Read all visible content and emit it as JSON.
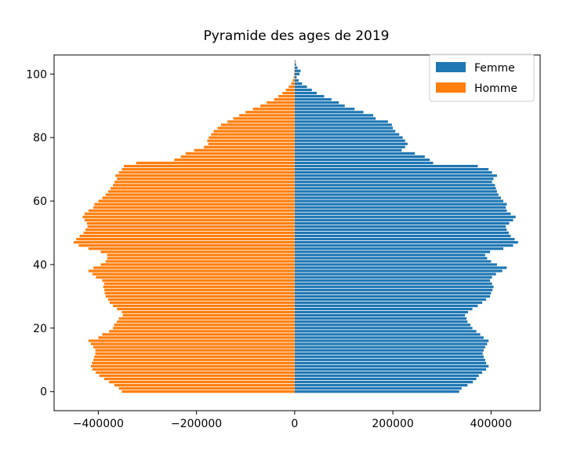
{
  "chart_data": {
    "type": "bar",
    "orientation": "horizontal",
    "title": "Pyramide des ages de 2019",
    "xlabel": "",
    "ylabel": "",
    "xlim": [
      -490000,
      500000
    ],
    "ylim": [
      -6,
      106
    ],
    "grid": false,
    "legend": "top-right",
    "x_ticks": [
      -400000,
      -200000,
      0,
      200000,
      400000
    ],
    "x_tick_labels": [
      "−400000",
      "−200000",
      "0",
      "200000",
      "400000"
    ],
    "y_ticks": [
      0,
      20,
      40,
      60,
      80,
      100
    ],
    "y_tick_labels": [
      "0",
      "20",
      "40",
      "60",
      "80",
      "100"
    ],
    "ages": [
      0,
      1,
      2,
      3,
      4,
      5,
      6,
      7,
      8,
      9,
      10,
      11,
      12,
      13,
      14,
      15,
      16,
      17,
      18,
      19,
      20,
      21,
      22,
      23,
      24,
      25,
      26,
      27,
      28,
      29,
      30,
      31,
      32,
      33,
      34,
      35,
      36,
      37,
      38,
      39,
      40,
      41,
      42,
      43,
      44,
      45,
      46,
      47,
      48,
      49,
      50,
      51,
      52,
      53,
      54,
      55,
      56,
      57,
      58,
      59,
      60,
      61,
      62,
      63,
      64,
      65,
      66,
      67,
      68,
      69,
      70,
      71,
      72,
      73,
      74,
      75,
      76,
      77,
      78,
      79,
      80,
      81,
      82,
      83,
      84,
      85,
      86,
      87,
      88,
      89,
      90,
      91,
      92,
      93,
      94,
      95,
      96,
      97,
      98,
      99,
      100,
      101,
      102,
      103,
      104
    ],
    "series": [
      {
        "name": "Femme",
        "color": "#1f77b4",
        "values": [
          335000,
          340000,
          352000,
          363000,
          370000,
          375000,
          382000,
          390000,
          395000,
          390000,
          388000,
          385000,
          383000,
          385000,
          388000,
          392000,
          395000,
          385000,
          378000,
          370000,
          362000,
          358000,
          352000,
          350000,
          347000,
          353000,
          362000,
          373000,
          382000,
          390000,
          398000,
          400000,
          403000,
          405000,
          402000,
          398000,
          402000,
          410000,
          423000,
          432000,
          412000,
          400000,
          392000,
          388000,
          398000,
          425000,
          445000,
          455000,
          448000,
          440000,
          436000,
          432000,
          430000,
          437000,
          445000,
          450000,
          440000,
          432000,
          430000,
          432000,
          425000,
          420000,
          415000,
          412000,
          410000,
          408000,
          402000,
          405000,
          412000,
          402000,
          395000,
          373000,
          282000,
          275000,
          265000,
          245000,
          218000,
          225000,
          230000,
          225000,
          220000,
          213000,
          205000,
          200000,
          198000,
          190000,
          165000,
          160000,
          140000,
          122000,
          102000,
          90000,
          75000,
          60000,
          45000,
          35000,
          25000,
          15000,
          8000,
          4000,
          10000,
          12000,
          6000,
          3000,
          1500
        ]
      },
      {
        "name": "Homme",
        "color": "#ff7f0e",
        "values": [
          -352000,
          -358000,
          -367000,
          -378000,
          -388000,
          -398000,
          -405000,
          -412000,
          -415000,
          -413000,
          -410000,
          -408000,
          -406000,
          -406000,
          -410000,
          -415000,
          -420000,
          -400000,
          -392000,
          -378000,
          -370000,
          -368000,
          -362000,
          -358000,
          -350000,
          -352000,
          -362000,
          -370000,
          -377000,
          -380000,
          -385000,
          -387000,
          -388000,
          -390000,
          -388000,
          -392000,
          -405000,
          -412000,
          -420000,
          -410000,
          -395000,
          -385000,
          -382000,
          -382000,
          -395000,
          -420000,
          -440000,
          -450000,
          -445000,
          -438000,
          -430000,
          -426000,
          -422000,
          -423000,
          -428000,
          -432000,
          -428000,
          -420000,
          -410000,
          -408000,
          -400000,
          -392000,
          -385000,
          -380000,
          -375000,
          -370000,
          -367000,
          -362000,
          -365000,
          -358000,
          -352000,
          -348000,
          -323000,
          -245000,
          -232000,
          -222000,
          -205000,
          -185000,
          -176000,
          -178000,
          -175000,
          -170000,
          -165000,
          -157000,
          -150000,
          -137000,
          -125000,
          -113000,
          -100000,
          -85000,
          -70000,
          -57000,
          -42000,
          -33000,
          -25000,
          -18000,
          -12000,
          -7000,
          -4000,
          -2000,
          -1500,
          -1000,
          -600,
          -300,
          -100
        ]
      }
    ]
  }
}
